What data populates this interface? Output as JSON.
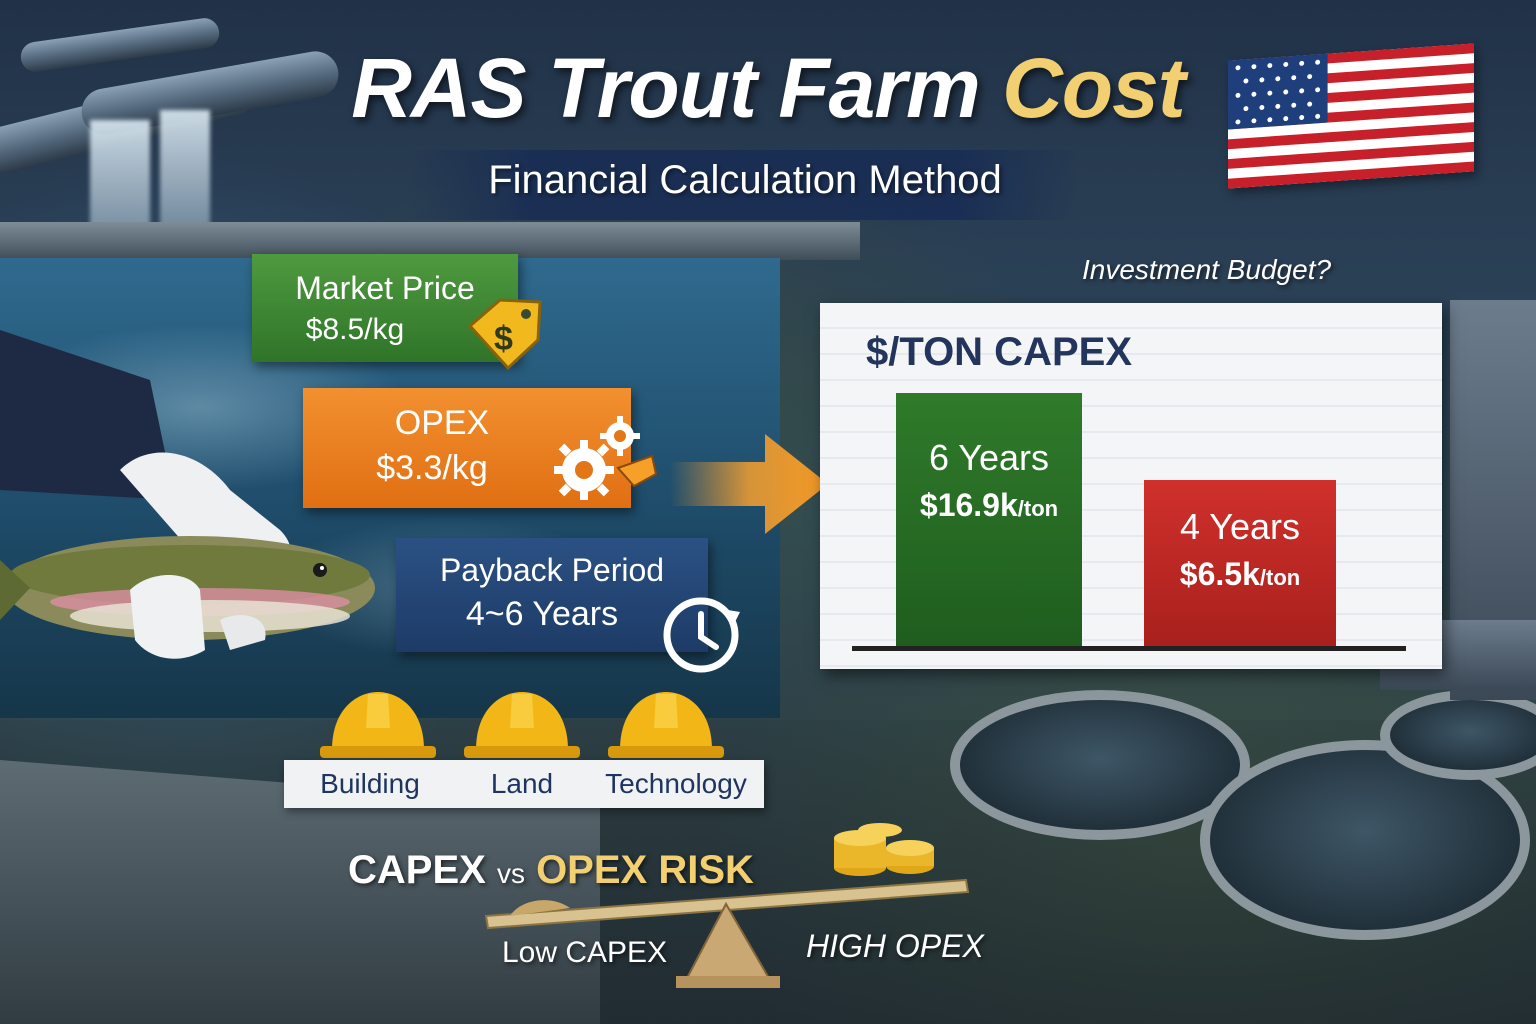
{
  "title": {
    "main": "RAS Trout Farm",
    "accent": "Cost"
  },
  "subtitle": "Financial Calculation Method",
  "cards": {
    "market_price": {
      "label": "Market Price",
      "value": "$8.5/kg",
      "icon": "price-tag-dollar-icon",
      "color": "#3f8a35"
    },
    "opex": {
      "label": "OPEX",
      "value": "$3.3/kg",
      "icon": "gears-icon",
      "color": "#ec8020"
    },
    "payback": {
      "label": "Payback Period",
      "value": "4~6 Years",
      "icon": "clock-icon",
      "color": "#24467a"
    }
  },
  "question": "Investment Budget?",
  "chart": {
    "title": "$/TON CAPEX",
    "bars": [
      {
        "label": "6 Years",
        "value": "$16.9k",
        "unit": "/ton",
        "color": "#2a6e27"
      },
      {
        "label": "4 Years",
        "value": "$6.5k",
        "unit": "/ton",
        "color": "#c02824"
      }
    ]
  },
  "capex_factors": [
    {
      "label": "Building",
      "icon": "hard-hat-icon"
    },
    {
      "label": "Land",
      "icon": "hard-hat-icon"
    },
    {
      "label": "Technology",
      "icon": "hard-hat-icon"
    }
  ],
  "risk": {
    "title_left": "CAPEX",
    "title_vs": "vs",
    "title_right": "OPEX RISK",
    "low_label": "Low CAPEX",
    "high_label": "HIGH OPEX"
  },
  "flag": "usa-flag-icon"
}
